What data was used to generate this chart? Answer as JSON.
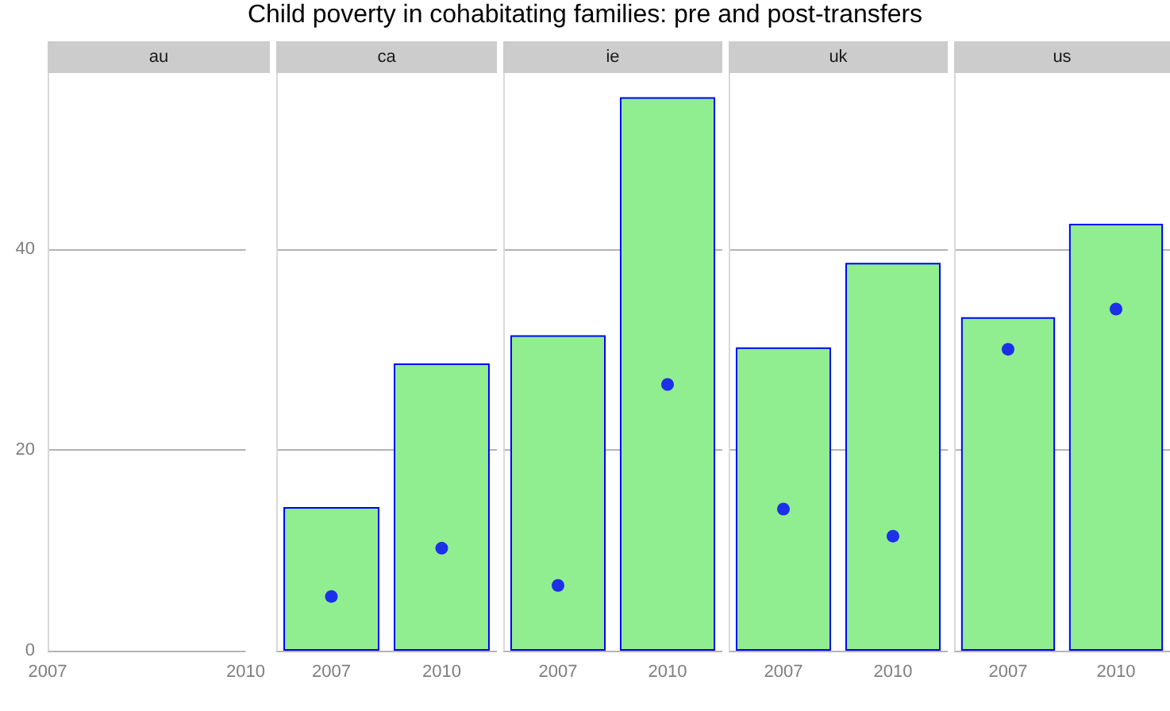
{
  "chart_data": [
    {
      "type": "bar",
      "subtitle": "au",
      "xlim": [
        2007,
        2010
      ],
      "xticks": [
        2007,
        2010
      ],
      "ylim": [
        0,
        57.5
      ],
      "yticks": [
        0,
        20,
        40
      ],
      "grid": "y"
    },
    {
      "type": "bar",
      "subtitle": "ca",
      "categories": [
        "2007",
        "2010"
      ],
      "ylim": [
        0,
        57.5
      ],
      "yticks": [
        0,
        20,
        40
      ],
      "grid": "y",
      "tick_labels": "x",
      "marker": "circle",
      "series": [
        {
          "color": "#90ee90",
          "values": [
            14.3,
            28.6
          ]
        },
        {
          "type": "scatter",
          "color": "#0000ff",
          "values": [
            5.4,
            10.2
          ]
        }
      ]
    },
    {
      "type": "bar",
      "title": "Child poverty in cohabitating families: pre and post-transfers",
      "subtitle": "ie",
      "categories": [
        "2007",
        "2010"
      ],
      "ylim": [
        0,
        57.5
      ],
      "yticks": [
        0,
        20,
        40
      ],
      "grid": "y",
      "tick_labels": "x",
      "marker": "circle",
      "series": [
        {
          "color": "#90ee90",
          "values": [
            31.4,
            55.1
          ]
        },
        {
          "type": "scatter",
          "color": "#0000ff",
          "values": [
            6.5,
            26.5
          ]
        }
      ]
    },
    {
      "type": "bar",
      "subtitle": "uk",
      "categories": [
        "2007",
        "2010"
      ],
      "ylim": [
        0,
        57.5
      ],
      "yticks": [
        0,
        20,
        40
      ],
      "grid": "y",
      "tick_labels": "x",
      "marker": "circle",
      "series": [
        {
          "color": "#90ee90",
          "values": [
            30.2,
            38.6
          ]
        },
        {
          "type": "scatter",
          "color": "#0000ff",
          "values": [
            14.1,
            11.4
          ]
        }
      ]
    },
    {
      "type": "bar",
      "subtitle": "us",
      "categories": [
        "2007",
        "2010"
      ],
      "ylim": [
        0,
        57.5
      ],
      "yticks": [
        0,
        20,
        40
      ],
      "grid": "y",
      "tick_labels": "x",
      "marker": "circle",
      "series": [
        {
          "color": "#90ee90",
          "values": [
            33.2,
            42.5
          ]
        },
        {
          "type": "scatter",
          "color": "#0000ff",
          "values": [
            30.0,
            34.0
          ]
        }
      ]
    }
  ]
}
